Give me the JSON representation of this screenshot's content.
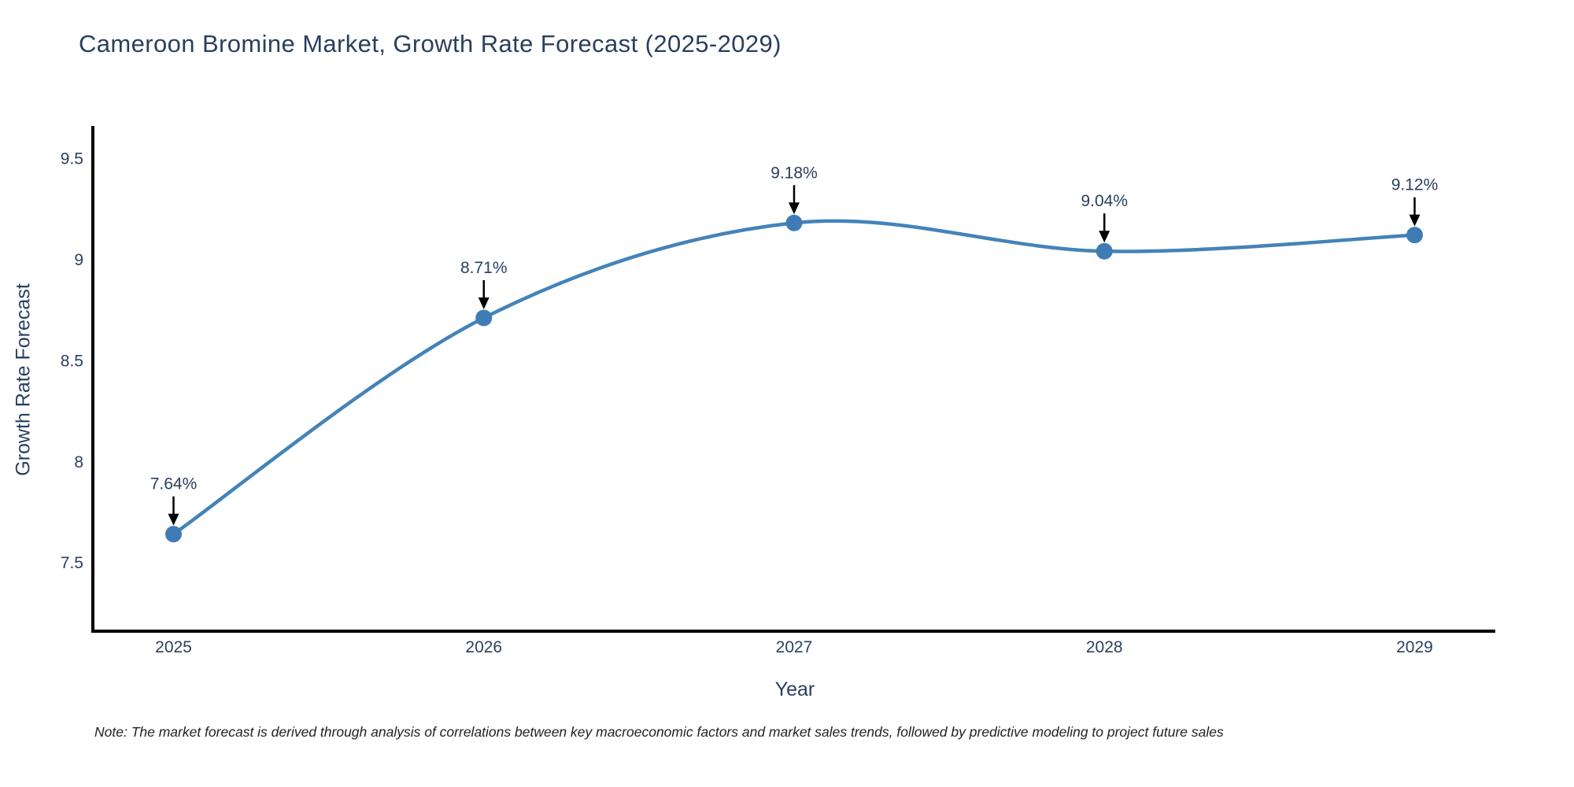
{
  "chart_data": {
    "type": "line",
    "title": "Cameroon Bromine Market, Growth Rate Forecast (2025-2029)",
    "xlabel": "Year",
    "ylabel": "Growth Rate Forecast",
    "x": [
      2025,
      2026,
      2027,
      2028,
      2029
    ],
    "y": [
      7.64,
      8.71,
      9.18,
      9.04,
      9.12
    ],
    "point_labels": [
      "7.64%",
      "8.71%",
      "9.18%",
      "9.04%",
      "9.12%"
    ],
    "series_name": "Growth Rate Forecast",
    "line_shape": "spline",
    "grid": false,
    "legend": "none",
    "xticks": [
      2025,
      2026,
      2027,
      2028,
      2029
    ],
    "yticks": [
      7.5,
      8,
      8.5,
      9,
      9.5
    ],
    "xlim": [
      2024.74,
      2029.26
    ],
    "ylim": [
      7.16,
      9.66
    ],
    "colors": {
      "line": "#4383b8",
      "marker": "#3f7cb5",
      "axis": "#000000",
      "tick_text": "#2a3f5f",
      "annotation_text": "#2a3f5f",
      "annotation_arrow": "#000000",
      "note_text": "#222222",
      "background": "#ffffff"
    },
    "note": "Note: The market forecast is derived through analysis of correlations between key macroeconomic factors and market sales trends, followed by predictive modeling to project future sales"
  }
}
